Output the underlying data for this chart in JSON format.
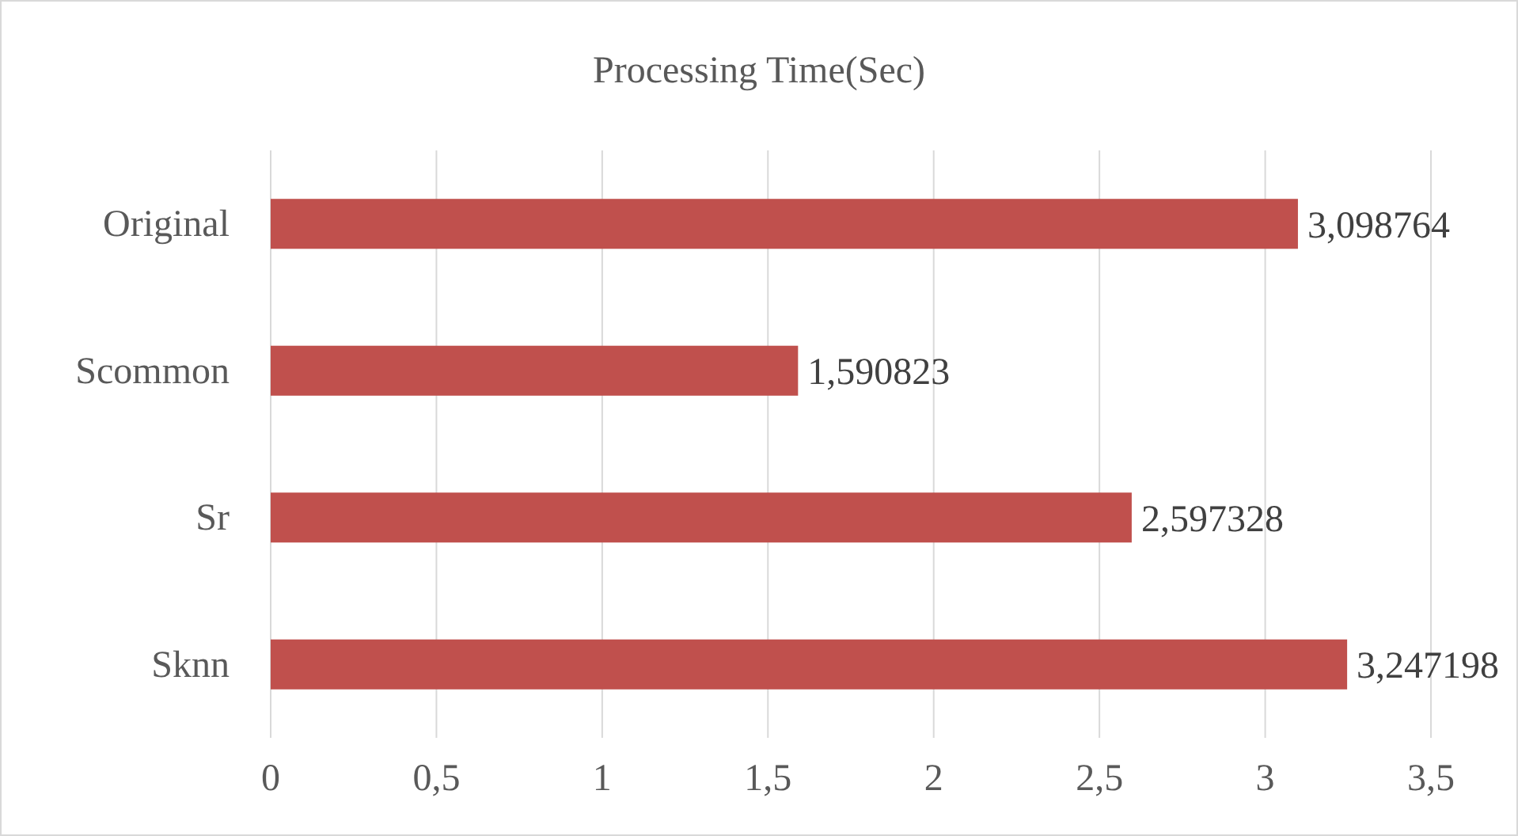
{
  "chart_data": {
    "type": "bar",
    "orientation": "horizontal",
    "title": "Processing Time(Sec)",
    "categories": [
      "Original",
      "Scommon",
      "Sr",
      "Sknn"
    ],
    "values": [
      3.098764,
      1.590823,
      2.597328,
      3.247198
    ],
    "value_labels": [
      "3,098764",
      "1,590823",
      "2,597328",
      "3,247198"
    ],
    "color": "#c0504d",
    "xlim": [
      0,
      3.5
    ],
    "xticks": [
      0,
      {
        "value": 0.5,
        "label": "0,5"
      },
      1,
      {
        "value": 1.5,
        "label": "1,5"
      },
      2,
      {
        "value": 2.5,
        "label": "2,5"
      },
      3,
      {
        "value": 3.5,
        "label": "3,5"
      }
    ],
    "grid": "x"
  }
}
